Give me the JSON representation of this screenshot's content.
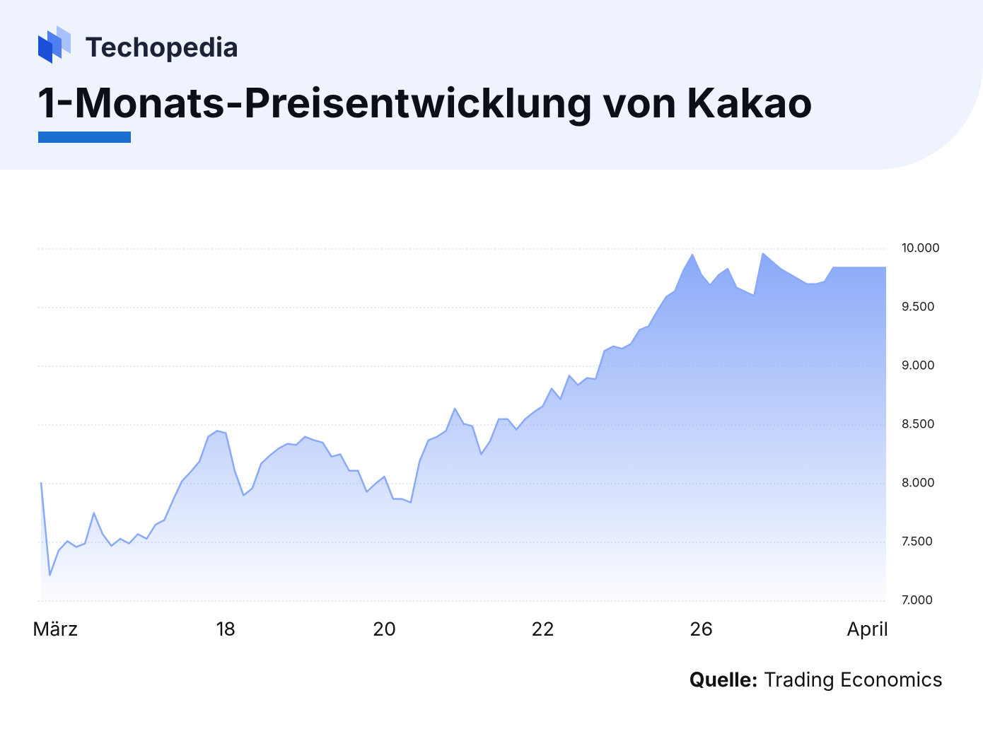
{
  "brand": "Techopedia",
  "chart_data": {
    "type": "area",
    "title": "1-Monats-Preisentwicklung von Kakao",
    "x": [
      0,
      1,
      2,
      3,
      4,
      5,
      6,
      7,
      8,
      9,
      10,
      11,
      12,
      13,
      14,
      15,
      16,
      17,
      18,
      19,
      20,
      21,
      22,
      23,
      24,
      25,
      26,
      27,
      28,
      29,
      30,
      31,
      32,
      33,
      34,
      35,
      36,
      37,
      38,
      39,
      40,
      41,
      42,
      43,
      44,
      45,
      46,
      47,
      48,
      49,
      50,
      51,
      52,
      53,
      54,
      55,
      56,
      57,
      58,
      59,
      60,
      61,
      62,
      63,
      64,
      65,
      66,
      67,
      68,
      69,
      70,
      71,
      72,
      73,
      74,
      75,
      76,
      77,
      78,
      79,
      81,
      82,
      84,
      87,
      88,
      89,
      90,
      96
    ],
    "values": [
      8010,
      7220,
      7430,
      7510,
      7460,
      7490,
      7750,
      7570,
      7470,
      7530,
      7490,
      7570,
      7530,
      7650,
      7690,
      7860,
      8020,
      8100,
      8190,
      8400,
      8450,
      8430,
      8110,
      7900,
      7960,
      8170,
      8240,
      8300,
      8340,
      8330,
      8400,
      8370,
      8350,
      8230,
      8250,
      8110,
      8110,
      7930,
      8000,
      8060,
      7870,
      7870,
      7840,
      8190,
      8370,
      8400,
      8450,
      8640,
      8510,
      8490,
      8250,
      8360,
      8550,
      8550,
      8460,
      8550,
      8610,
      8660,
      8810,
      8720,
      8920,
      8840,
      8900,
      8890,
      9130,
      9170,
      9150,
      9190,
      9310,
      9340,
      9470,
      9590,
      9640,
      9820,
      9950,
      9780,
      9690,
      9780,
      9830,
      9670,
      9600,
      9960,
      9830,
      9700,
      9700,
      9720,
      9840,
      9840
    ],
    "color": "#8aa9f8",
    "xlim": [
      0,
      96
    ],
    "xticks": [
      {
        "value": 0,
        "label": "März"
      },
      {
        "value": 21,
        "label": "18"
      },
      {
        "value": 39,
        "label": "20"
      },
      {
        "value": 57,
        "label": "22"
      },
      {
        "value": 75,
        "label": "26"
      },
      {
        "value": 96,
        "label": "April"
      }
    ],
    "ylim": [
      7000,
      10000
    ],
    "yticks": [
      {
        "value": 7000,
        "label": "7.000"
      },
      {
        "value": 7500,
        "label": "7.500"
      },
      {
        "value": 8000,
        "label": "8.000"
      },
      {
        "value": 8500,
        "label": "8.500"
      },
      {
        "value": 9000,
        "label": "9.000"
      },
      {
        "value": 9500,
        "label": "9.500"
      },
      {
        "value": 10000,
        "label": "10.000"
      }
    ],
    "grid": true
  },
  "source_label": "Quelle:",
  "source": "Trading Economics"
}
